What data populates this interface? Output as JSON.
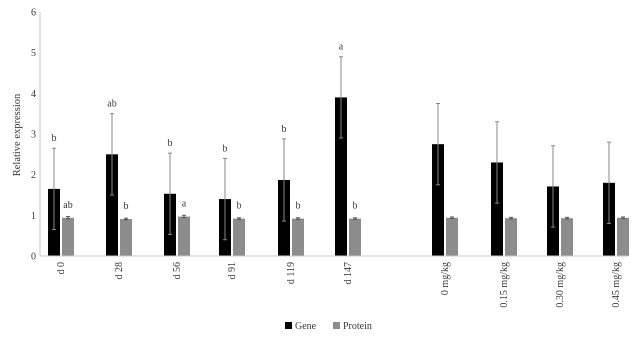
{
  "chart_data": {
    "type": "bar",
    "title": "",
    "xlabel": "",
    "ylabel": "Relative expression",
    "ylim": [
      0,
      6
    ],
    "yticks": [
      0,
      1,
      2,
      3,
      4,
      5,
      6
    ],
    "grid": false,
    "legend_position": "bottom-center",
    "categories": [
      "d 0",
      "d 28",
      "d 56",
      "d 91",
      "d 119",
      "d 147",
      "0 mg/kg",
      "0.15 mg/kg",
      "0.30 mg/kg",
      "0.45 mg/kg"
    ],
    "series": [
      {
        "name": "Gene",
        "color": "#000000",
        "values": [
          1.65,
          2.5,
          1.53,
          1.4,
          1.87,
          3.9,
          2.75,
          2.3,
          1.71,
          1.8
        ],
        "error_upper": [
          2.65,
          3.5,
          2.53,
          2.4,
          2.88,
          4.9,
          3.75,
          3.3,
          2.71,
          2.8
        ],
        "error_lower": [
          0.65,
          1.5,
          0.53,
          0.4,
          0.86,
          2.9,
          1.75,
          1.3,
          0.71,
          0.8
        ],
        "letters": [
          "b",
          "ab",
          "b",
          "b",
          "b",
          "a",
          "",
          "",
          "",
          ""
        ]
      },
      {
        "name": "Protein",
        "color": "#8c8c8c",
        "values": [
          0.94,
          0.91,
          0.97,
          0.92,
          0.92,
          0.92,
          0.94,
          0.93,
          0.93,
          0.94
        ],
        "error_upper": [
          0.97,
          0.93,
          1.0,
          0.94,
          0.94,
          0.94,
          0.96,
          0.95,
          0.95,
          0.96
        ],
        "error_lower": [
          0.91,
          0.89,
          0.94,
          0.9,
          0.9,
          0.9,
          0.92,
          0.91,
          0.91,
          0.92
        ],
        "letters": [
          "ab",
          "b",
          "a",
          "b",
          "b",
          "b",
          "",
          "",
          "",
          ""
        ]
      }
    ]
  }
}
